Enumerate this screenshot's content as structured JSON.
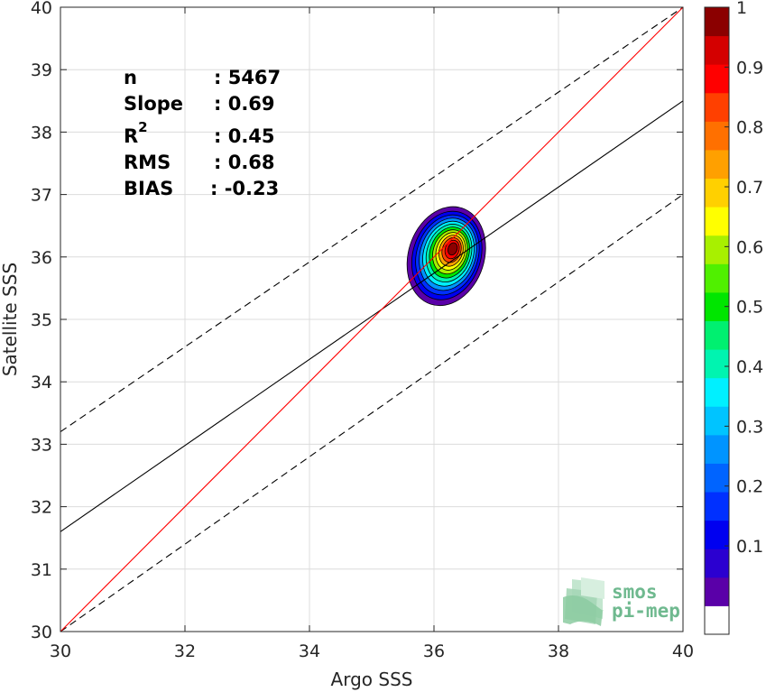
{
  "chart_data": {
    "type": "contour",
    "xlabel": "Argo SSS",
    "ylabel": "Satellite SSS",
    "xlim": [
      30,
      40
    ],
    "ylim": [
      30,
      40
    ],
    "xticks": [
      "30",
      "32",
      "34",
      "36",
      "38",
      "40"
    ],
    "yticks": [
      "30",
      "31",
      "32",
      "33",
      "34",
      "35",
      "36",
      "37",
      "38",
      "39",
      "40"
    ],
    "grid": true,
    "stats": [
      {
        "name": "n",
        "value": ": 5467"
      },
      {
        "name": "Slope",
        "value": ": 0.69"
      },
      {
        "name": "R",
        "sup": "2",
        "value": ": 0.45"
      },
      {
        "name": "RMS",
        "value": ": 0.68"
      },
      {
        "name": "BIAS",
        "value": ": -0.23"
      }
    ],
    "lines": {
      "identity": {
        "x": [
          30,
          40
        ],
        "y": [
          30,
          40
        ],
        "color": "#ff0000"
      },
      "regression": {
        "x": [
          30,
          40
        ],
        "y": [
          31.6,
          38.5
        ],
        "color": "#000000"
      },
      "upper_bound": {
        "x": [
          30,
          40
        ],
        "y": [
          33.2,
          40.0
        ],
        "color": "#000000",
        "dash": true
      },
      "lower_bound": {
        "x": [
          30,
          40
        ],
        "y": [
          30.0,
          37.0
        ],
        "color": "#000000",
        "dash": true
      }
    },
    "density_peak": {
      "x": 36.3,
      "y": 36.1
    },
    "colorbar": {
      "ticks": [
        "0.1",
        "0.2",
        "0.3",
        "0.4",
        "0.5",
        "0.6",
        "0.7",
        "0.8",
        "0.9",
        "1"
      ],
      "levels": 20,
      "colors": [
        "#ffffff",
        "#5a00a8",
        "#2b00d0",
        "#0000f0",
        "#0030ff",
        "#0064ff",
        "#0094ff",
        "#00c4ff",
        "#00f0ff",
        "#00f4b0",
        "#00f070",
        "#00e600",
        "#50f000",
        "#a8f000",
        "#ffff00",
        "#ffd000",
        "#ffa000",
        "#ff7000",
        "#ff4000",
        "#ff0000",
        "#d40000",
        "#8b0000"
      ]
    }
  },
  "logo": {
    "line1": "smos",
    "line2": "pi-mep",
    "color": "#6fb98f"
  }
}
